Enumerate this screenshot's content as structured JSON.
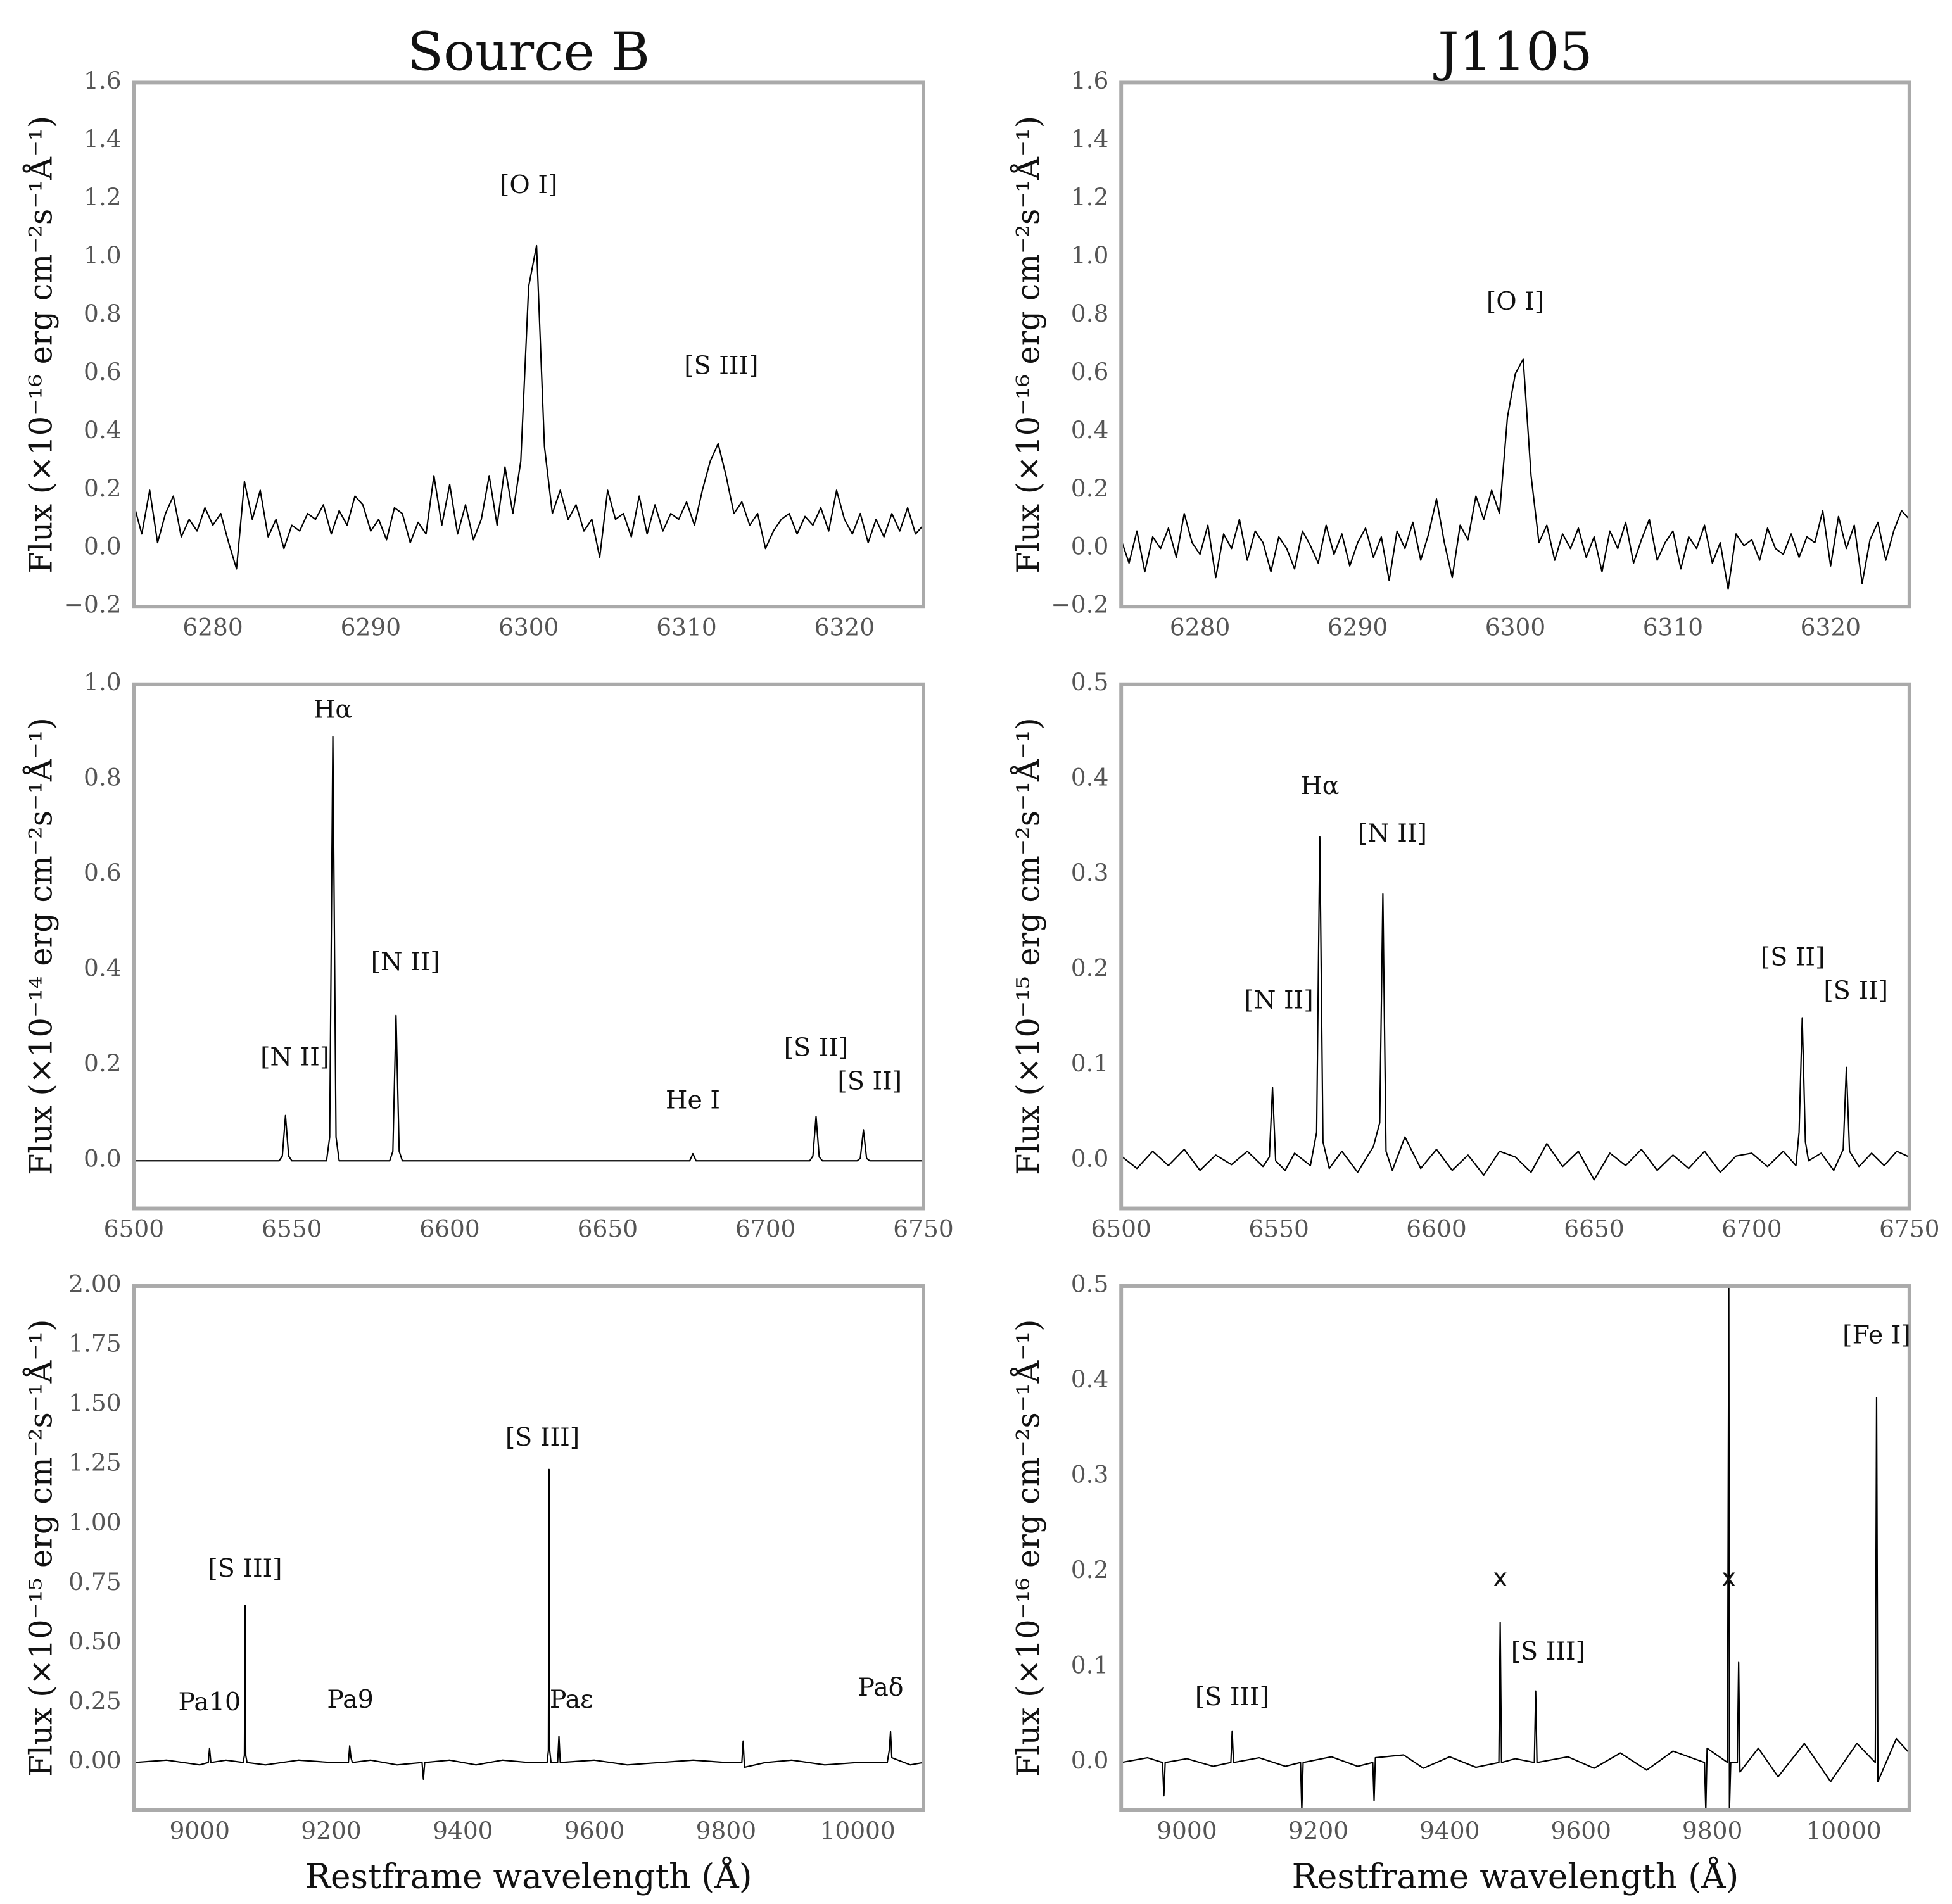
{
  "chart_data": [
    {
      "type": "line",
      "title": "Source B",
      "ylabel": "Flux (×10⁻¹⁶ erg cm⁻²s⁻¹Å⁻¹)",
      "color": "#000000",
      "xlim": [
        6275,
        6325
      ],
      "ylim": [
        -0.2,
        1.6
      ],
      "xticks": [
        6280,
        6290,
        6300,
        6310,
        6320
      ],
      "yticks": [
        {
          "value": -0.2,
          "label": "−0.2"
        },
        {
          "value": 0,
          "label": "0.0"
        },
        0.2,
        0.4,
        0.6,
        0.8,
        {
          "value": 1,
          "label": "1.0"
        },
        1.2,
        1.4,
        1.6
      ],
      "x": [
        6275,
        6275.5,
        6276,
        6276.5,
        6277,
        6277.5,
        6278,
        6278.5,
        6279,
        6279.5,
        6280,
        6280.5,
        6281,
        6281.5,
        6282,
        6282.5,
        6283,
        6283.5,
        6284,
        6284.5,
        6285,
        6285.5,
        6286,
        6286.5,
        6287,
        6287.5,
        6288,
        6288.5,
        6289,
        6289.5,
        6290,
        6290.5,
        6291,
        6291.5,
        6292,
        6292.5,
        6293,
        6293.5,
        6294,
        6294.5,
        6295,
        6295.5,
        6296,
        6296.5,
        6297,
        6297.5,
        6298,
        6298.5,
        6299,
        6299.5,
        6300,
        6300.5,
        6301,
        6301.5,
        6302,
        6302.5,
        6303,
        6303.5,
        6304,
        6304.5,
        6305,
        6305.5,
        6306,
        6306.5,
        6307,
        6307.5,
        6308,
        6308.5,
        6309,
        6309.5,
        6310,
        6310.5,
        6311,
        6311.5,
        6312,
        6312.5,
        6313,
        6313.5,
        6314,
        6314.5,
        6315,
        6315.5,
        6316,
        6316.5,
        6317,
        6317.5,
        6318,
        6318.5,
        6319,
        6319.5,
        6320,
        6320.5,
        6321,
        6321.5,
        6322,
        6322.5,
        6323,
        6323.5,
        6324,
        6324.5,
        6325
      ],
      "values": [
        0.15,
        0.05,
        0.2,
        0.02,
        0.12,
        0.18,
        0.04,
        0.1,
        0.06,
        0.14,
        0.08,
        0.12,
        0.02,
        -0.07,
        0.23,
        0.1,
        0.2,
        0.04,
        0.1,
        0.0,
        0.08,
        0.06,
        0.12,
        0.1,
        0.15,
        0.05,
        0.13,
        0.08,
        0.18,
        0.15,
        0.06,
        0.1,
        0.03,
        0.14,
        0.12,
        0.02,
        0.09,
        0.05,
        0.25,
        0.08,
        0.22,
        0.05,
        0.15,
        0.03,
        0.1,
        0.25,
        0.08,
        0.28,
        0.12,
        0.3,
        0.9,
        1.04,
        0.35,
        0.12,
        0.2,
        0.1,
        0.15,
        0.06,
        0.1,
        -0.03,
        0.2,
        0.1,
        0.12,
        0.04,
        0.18,
        0.05,
        0.15,
        0.06,
        0.12,
        0.1,
        0.16,
        0.08,
        0.2,
        0.3,
        0.36,
        0.25,
        0.12,
        0.16,
        0.08,
        0.12,
        0.0,
        0.06,
        0.1,
        0.12,
        0.05,
        0.11,
        0.08,
        0.14,
        0.06,
        0.2,
        0.1,
        0.05,
        0.12,
        0.02,
        0.1,
        0.04,
        0.12,
        0.06,
        0.14,
        0.05,
        0.08
      ],
      "annotations": [
        {
          "text": "[O I]",
          "x": 6300,
          "y": 1.22
        },
        {
          "text": "[S III]",
          "x": 6312.2,
          "y": 0.6
        }
      ]
    },
    {
      "type": "line",
      "title": "J1105",
      "ylabel": "Flux (×10⁻¹⁶ erg cm⁻²s⁻¹Å⁻¹)",
      "color": "#000000",
      "xlim": [
        6275,
        6325
      ],
      "ylim": [
        -0.2,
        1.6
      ],
      "xticks": [
        6280,
        6290,
        6300,
        6310,
        6320
      ],
      "yticks": [
        {
          "value": -0.2,
          "label": "−0.2"
        },
        {
          "value": 0,
          "label": "0.0"
        },
        0.2,
        0.4,
        0.6,
        0.8,
        {
          "value": 1,
          "label": "1.0"
        },
        1.2,
        1.4,
        1.6
      ],
      "x": [
        6275,
        6275.5,
        6276,
        6276.5,
        6277,
        6277.5,
        6278,
        6278.5,
        6279,
        6279.5,
        6280,
        6280.5,
        6281,
        6281.5,
        6282,
        6282.5,
        6283,
        6283.5,
        6284,
        6284.5,
        6285,
        6285.5,
        6286,
        6286.5,
        6287,
        6287.5,
        6288,
        6288.5,
        6289,
        6289.5,
        6290,
        6290.5,
        6291,
        6291.5,
        6292,
        6292.5,
        6293,
        6293.5,
        6294,
        6294.5,
        6295,
        6295.5,
        6296,
        6296.5,
        6297,
        6297.5,
        6298,
        6298.5,
        6299,
        6299.5,
        6300,
        6300.5,
        6301,
        6301.5,
        6302,
        6302.5,
        6303,
        6303.5,
        6304,
        6304.5,
        6305,
        6305.5,
        6306,
        6306.5,
        6307,
        6307.5,
        6308,
        6308.5,
        6309,
        6309.5,
        6310,
        6310.5,
        6311,
        6311.5,
        6312,
        6312.5,
        6313,
        6313.5,
        6314,
        6314.5,
        6315,
        6315.5,
        6316,
        6316.5,
        6317,
        6317.5,
        6318,
        6318.5,
        6319,
        6319.5,
        6320,
        6320.5,
        6321,
        6321.5,
        6322,
        6322.5,
        6323,
        6323.5,
        6324,
        6324.5,
        6325
      ],
      "values": [
        0.03,
        -0.05,
        0.06,
        -0.08,
        0.04,
        0.0,
        0.07,
        -0.03,
        0.12,
        0.02,
        -0.02,
        0.08,
        -0.1,
        0.05,
        0.0,
        0.1,
        -0.04,
        0.06,
        0.02,
        -0.08,
        0.04,
        0.0,
        -0.07,
        0.06,
        0.01,
        -0.05,
        0.08,
        -0.02,
        0.05,
        -0.06,
        0.02,
        0.07,
        -0.03,
        0.04,
        -0.11,
        0.06,
        0.0,
        0.09,
        -0.04,
        0.05,
        0.17,
        0.02,
        -0.1,
        0.08,
        0.03,
        0.18,
        0.1,
        0.2,
        0.12,
        0.45,
        0.6,
        0.65,
        0.25,
        0.02,
        0.08,
        -0.04,
        0.05,
        0.0,
        0.07,
        -0.03,
        0.04,
        -0.08,
        0.06,
        0.0,
        0.09,
        -0.05,
        0.03,
        0.1,
        -0.04,
        0.02,
        0.06,
        -0.07,
        0.04,
        0.0,
        0.08,
        -0.05,
        0.02,
        -0.14,
        0.05,
        0.01,
        0.03,
        -0.04,
        0.07,
        0.0,
        -0.02,
        0.05,
        -0.03,
        0.04,
        0.02,
        0.13,
        -0.06,
        0.11,
        0.0,
        0.08,
        -0.12,
        0.03,
        0.09,
        -0.04,
        0.06,
        0.13,
        0.1
      ],
      "annotations": [
        {
          "text": "[O I]",
          "x": 6300,
          "y": 0.82
        }
      ]
    },
    {
      "type": "line",
      "ylabel": "Flux (×10⁻¹⁴ erg cm⁻²s⁻¹Å⁻¹)",
      "color": "#000000",
      "xlim": [
        6500,
        6750
      ],
      "ylim": [
        -0.1,
        1.0
      ],
      "xticks": [
        6500,
        6550,
        6600,
        6650,
        6700,
        6750
      ],
      "yticks": [
        {
          "value": 0,
          "label": "0.0"
        },
        0.2,
        0.4,
        0.6,
        0.8,
        {
          "value": 1,
          "label": "1.0"
        }
      ],
      "x": [
        6500,
        6546,
        6547,
        6548,
        6549,
        6550,
        6561,
        6562,
        6563,
        6564,
        6565,
        6581,
        6582,
        6583,
        6584,
        6585,
        6676,
        6677,
        6678,
        6679,
        6714,
        6715,
        6716,
        6717,
        6718,
        6729,
        6730,
        6731,
        6732,
        6733,
        6750
      ],
      "values": [
        0,
        0,
        0.01,
        0.095,
        0.01,
        0,
        0,
        0.05,
        0.89,
        0.05,
        0,
        0,
        0.02,
        0.305,
        0.02,
        0,
        0,
        0.015,
        0,
        0,
        0,
        0.01,
        0.093,
        0.008,
        0,
        0,
        0.005,
        0.065,
        0.005,
        0,
        0
      ],
      "annotations": [
        {
          "text": "[N II]",
          "x": 6551,
          "y": 0.2
        },
        {
          "text": "Hα",
          "x": 6563,
          "y": 0.93
        },
        {
          "text": "[N II]",
          "x": 6586,
          "y": 0.4
        },
        {
          "text": "He I",
          "x": 6677,
          "y": 0.11
        },
        {
          "text": "[S II]",
          "x": 6716,
          "y": 0.22
        },
        {
          "text": "[S II]",
          "x": 6733,
          "y": 0.15
        }
      ]
    },
    {
      "type": "line",
      "ylabel": "Flux (×10⁻¹⁵ erg cm⁻²s⁻¹Å⁻¹)",
      "color": "#000000",
      "xlim": [
        6500,
        6750
      ],
      "ylim": [
        -0.05,
        0.5
      ],
      "xticks": [
        6500,
        6550,
        6600,
        6650,
        6700,
        6750
      ],
      "yticks": [
        {
          "value": 0,
          "label": "0.0"
        },
        0.1,
        0.2,
        0.3,
        0.4,
        0.5
      ],
      "x": [
        6500,
        6505,
        6510,
        6515,
        6520,
        6525,
        6530,
        6535,
        6540,
        6545,
        6547,
        6548,
        6549,
        6552,
        6555,
        6560,
        6562,
        6563,
        6564,
        6566,
        6570,
        6575,
        6580,
        6582,
        6583,
        6584,
        6586,
        6590,
        6595,
        6600,
        6605,
        6610,
        6615,
        6620,
        6625,
        6630,
        6635,
        6640,
        6645,
        6650,
        6655,
        6660,
        6665,
        6670,
        6675,
        6680,
        6685,
        6690,
        6695,
        6700,
        6705,
        6710,
        6714,
        6715,
        6716,
        6717,
        6718,
        6722,
        6726,
        6729,
        6730,
        6731,
        6734,
        6738,
        6742,
        6746,
        6750
      ],
      "values": [
        0.005,
        -0.008,
        0.01,
        -0.005,
        0.012,
        -0.01,
        0.006,
        -0.004,
        0.01,
        -0.006,
        0.004,
        0.077,
        0.0,
        -0.01,
        0.008,
        -0.005,
        0.03,
        0.34,
        0.02,
        -0.008,
        0.01,
        -0.012,
        0.015,
        0.04,
        0.28,
        0.01,
        -0.01,
        0.025,
        -0.008,
        0.012,
        -0.01,
        0.006,
        -0.015,
        0.01,
        0.004,
        -0.012,
        0.018,
        -0.006,
        0.01,
        -0.02,
        0.008,
        -0.005,
        0.012,
        -0.01,
        0.006,
        -0.008,
        0.01,
        -0.012,
        0.005,
        0.008,
        -0.006,
        0.01,
        -0.005,
        0.03,
        0.15,
        0.02,
        0.0,
        0.008,
        -0.01,
        0.012,
        0.098,
        0.01,
        -0.006,
        0.008,
        -0.005,
        0.01,
        0.004
      ],
      "annotations": [
        {
          "text": "[N II]",
          "x": 6550,
          "y": 0.16
        },
        {
          "text": "Hα",
          "x": 6563,
          "y": 0.385
        },
        {
          "text": "[N II]",
          "x": 6586,
          "y": 0.335
        },
        {
          "text": "[S II]",
          "x": 6713,
          "y": 0.205
        },
        {
          "text": "[S II]",
          "x": 6733,
          "y": 0.17
        }
      ]
    },
    {
      "type": "line",
      "xlabel": "Restframe wavelength (Å)",
      "ylabel": "Flux (×10⁻¹⁵ erg cm⁻²s⁻¹Å⁻¹)",
      "color": "#000000",
      "xlim": [
        8900,
        10100
      ],
      "ylim": [
        -0.2,
        2.0
      ],
      "xticks": [
        9000,
        9200,
        9400,
        9600,
        9800,
        10000
      ],
      "yticks": [
        {
          "value": 0,
          "label": "0.00"
        },
        0.25,
        {
          "value": 0.5,
          "label": "0.50"
        },
        0.75,
        {
          "value": 1,
          "label": "1.00"
        },
        1.25,
        {
          "value": 1.5,
          "label": "1.50"
        },
        1.75,
        {
          "value": 2,
          "label": "2.00"
        }
      ],
      "x": [
        8900,
        8950,
        9000,
        9013,
        9015,
        9017,
        9040,
        9066,
        9068,
        9069,
        9070,
        9072,
        9100,
        9150,
        9200,
        9226,
        9228,
        9230,
        9232,
        9260,
        9300,
        9338,
        9340,
        9342,
        9380,
        9420,
        9460,
        9500,
        9528,
        9530,
        9531,
        9532,
        9534,
        9544,
        9546,
        9548,
        9600,
        9650,
        9700,
        9750,
        9800,
        9824,
        9826,
        9828,
        9860,
        9900,
        9950,
        10000,
        10045,
        10048,
        10050,
        10052,
        10080,
        10100
      ],
      "values": [
        0.0,
        0.01,
        -0.01,
        0.0,
        0.06,
        0.0,
        0.01,
        0.0,
        0.03,
        0.66,
        0.03,
        0.0,
        -0.01,
        0.01,
        0.0,
        0.0,
        0.07,
        0.02,
        0.0,
        0.01,
        -0.01,
        0.0,
        -0.07,
        0.0,
        0.01,
        -0.01,
        0.01,
        0.0,
        0.0,
        0.05,
        1.23,
        0.05,
        0.0,
        0.0,
        0.11,
        0.0,
        0.01,
        -0.01,
        0.0,
        0.01,
        0.0,
        0.0,
        0.09,
        -0.02,
        0.0,
        0.01,
        -0.01,
        0.0,
        0.0,
        0.05,
        0.13,
        0.02,
        -0.01,
        0.0
      ],
      "annotations": [
        {
          "text": "Pa10",
          "x": 9015,
          "y": 0.22
        },
        {
          "text": "[S III]",
          "x": 9069,
          "y": 0.78
        },
        {
          "text": "Pa9",
          "x": 9229,
          "y": 0.23
        },
        {
          "text": "[S III]",
          "x": 9521,
          "y": 1.33
        },
        {
          "text": "Paε",
          "x": 9565,
          "y": 0.23
        },
        {
          "text": "Paδ",
          "x": 10035,
          "y": 0.28
        }
      ]
    },
    {
      "type": "line",
      "xlabel": "Restframe wavelength (Å)",
      "ylabel": "Flux (×10⁻¹⁶ erg cm⁻²s⁻¹Å⁻¹)",
      "color": "#000000",
      "xlim": [
        8900,
        10100
      ],
      "ylim": [
        -0.05,
        0.5
      ],
      "xticks": [
        9000,
        9200,
        9400,
        9600,
        9800,
        10000
      ],
      "yticks": [
        {
          "value": 0,
          "label": "0.0"
        },
        0.1,
        0.2,
        0.3,
        0.4,
        0.5
      ],
      "x": [
        8900,
        8940,
        8963,
        8965,
        8967,
        9000,
        9040,
        9067,
        9069,
        9071,
        9110,
        9150,
        9173,
        9175,
        9177,
        9220,
        9260,
        9283,
        9285,
        9287,
        9330,
        9360,
        9400,
        9440,
        9475,
        9477,
        9479,
        9500,
        9529,
        9531,
        9533,
        9580,
        9620,
        9660,
        9700,
        9740,
        9788,
        9790,
        9792,
        9823,
        9825,
        9826,
        9828,
        9838,
        9840,
        9842,
        9870,
        9900,
        9940,
        9980,
        10020,
        10048,
        10050,
        10052,
        10080,
        10100
      ],
      "values": [
        0.0,
        0.005,
        0.0,
        -0.035,
        0.0,
        0.004,
        -0.004,
        0.0,
        0.033,
        0.0,
        0.005,
        -0.004,
        0.0,
        -0.05,
        0.0,
        0.006,
        -0.004,
        0.0,
        -0.04,
        0.005,
        0.008,
        -0.006,
        0.006,
        -0.005,
        0.0,
        0.147,
        0.0,
        0.004,
        0.0,
        0.075,
        0.0,
        0.006,
        -0.006,
        0.01,
        -0.008,
        0.012,
        0.0,
        -0.05,
        0.015,
        0.0,
        0.5,
        -0.05,
        0.0,
        0.0,
        0.105,
        -0.01,
        0.015,
        -0.015,
        0.02,
        -0.02,
        0.02,
        0.0,
        0.383,
        -0.02,
        0.025,
        0.01
      ],
      "annotations": [
        {
          "text": "[S III]",
          "x": 9069,
          "y": 0.06
        },
        {
          "text": "x",
          "x": 9477,
          "y": 0.185
        },
        {
          "text": "[S III]",
          "x": 9550,
          "y": 0.108
        },
        {
          "text": "x",
          "x": 9825,
          "y": 0.185
        },
        {
          "text": "[Fe I]",
          "x": 10050,
          "y": 0.44
        }
      ]
    }
  ]
}
